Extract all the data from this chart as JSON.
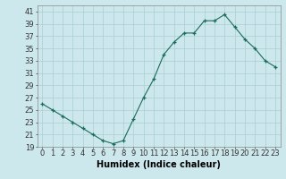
{
  "x": [
    0,
    1,
    2,
    3,
    4,
    5,
    6,
    7,
    8,
    9,
    10,
    11,
    12,
    13,
    14,
    15,
    16,
    17,
    18,
    19,
    20,
    21,
    22,
    23
  ],
  "y": [
    26,
    25,
    24,
    23,
    22,
    21,
    20,
    19.5,
    20,
    23.5,
    27,
    30,
    34,
    36,
    37.5,
    37.5,
    39.5,
    39.5,
    40.5,
    38.5,
    36.5,
    35,
    33,
    32
  ],
  "line_color": "#1a6b5a",
  "marker_color": "#1a6b5a",
  "bg_color": "#cce8ec",
  "grid_color": "#aacdd4",
  "xlabel": "Humidex (Indice chaleur)",
  "ylim": [
    19,
    42
  ],
  "yticks": [
    19,
    21,
    23,
    25,
    27,
    29,
    31,
    33,
    35,
    37,
    39,
    41
  ],
  "xlim": [
    -0.5,
    23.5
  ],
  "xlabel_fontsize": 7,
  "tick_fontsize": 6
}
